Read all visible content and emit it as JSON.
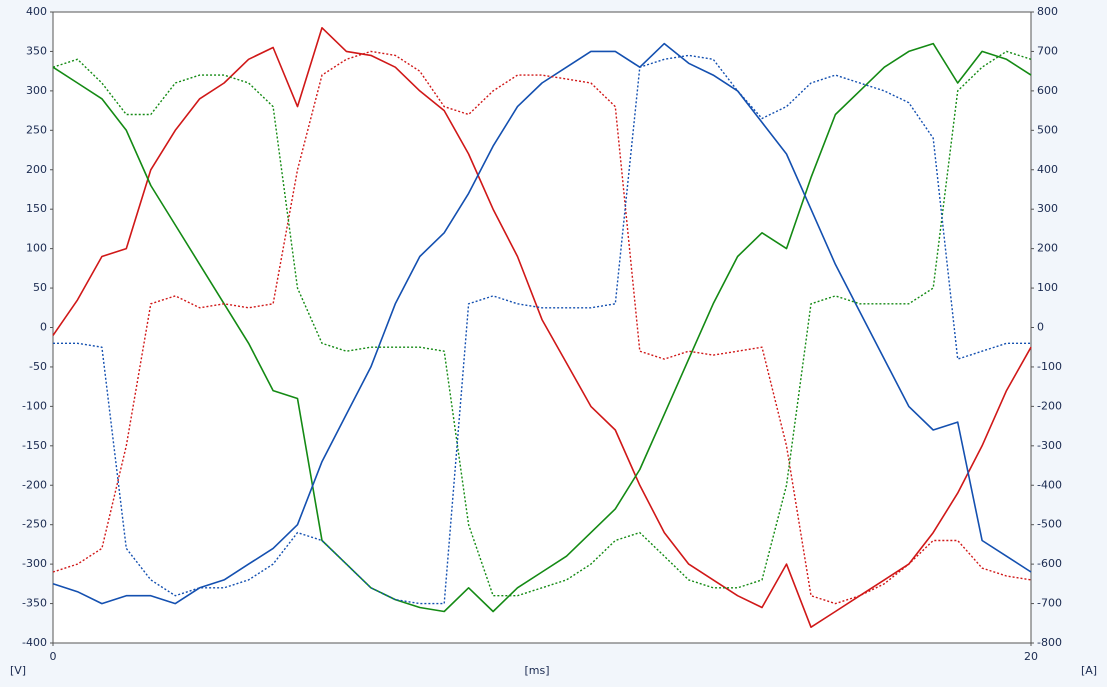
{
  "chart_data": {
    "type": "line",
    "xlabel": "[ms]",
    "ylabel": "[V]",
    "y2label": "[A]",
    "x": [
      0,
      0.5,
      1,
      1.5,
      2,
      2.5,
      3,
      3.5,
      4,
      4.5,
      5,
      5.5,
      6,
      6.5,
      7,
      7.5,
      8,
      8.5,
      9,
      9.5,
      10,
      10.5,
      11,
      11.5,
      12,
      12.5,
      13,
      13.5,
      14,
      14.5,
      15,
      15.5,
      16,
      16.5,
      17,
      17.5,
      18,
      18.5,
      19,
      19.5,
      20
    ],
    "xlim": [
      0,
      20
    ],
    "xticks": [
      0,
      20
    ],
    "ylim": [
      -400,
      400
    ],
    "yticks": [
      -400,
      -350,
      -300,
      -250,
      -200,
      -150,
      -100,
      -50,
      0,
      50,
      100,
      150,
      200,
      250,
      300,
      350,
      400
    ],
    "y2lim": [
      -800,
      800
    ],
    "y2ticks": [
      -800,
      -700,
      -600,
      -500,
      -400,
      -300,
      -200,
      -100,
      0,
      100,
      200,
      300,
      400,
      500,
      600,
      700,
      800
    ],
    "grid": false,
    "series": [
      {
        "color": "#d01818",
        "line_style": "solid",
        "values": [
          -10,
          35,
          90,
          100,
          200,
          250,
          290,
          310,
          340,
          355,
          280,
          380,
          350,
          345,
          330,
          300,
          275,
          220,
          150,
          90,
          10,
          -45,
          -100,
          -130,
          -200,
          -260,
          -300,
          -320,
          -340,
          -355,
          -300,
          -380,
          -360,
          -340,
          -320,
          -300,
          -260,
          -210,
          -150,
          -80,
          -25
        ]
      },
      {
        "color": "#148a14",
        "line_style": "solid",
        "values": [
          330,
          310,
          290,
          250,
          180,
          130,
          80,
          30,
          -20,
          -80,
          -90,
          -270,
          -300,
          -330,
          -345,
          -355,
          -360,
          -330,
          -360,
          -330,
          -310,
          -290,
          -260,
          -230,
          -180,
          -110,
          -40,
          30,
          90,
          120,
          100,
          190,
          270,
          300,
          330,
          350,
          360,
          310,
          350,
          340,
          320
        ]
      },
      {
        "color": "#1450b0",
        "line_style": "solid",
        "values": [
          -325,
          -335,
          -350,
          -340,
          -340,
          -350,
          -330,
          -320,
          -300,
          -280,
          -250,
          -170,
          -110,
          -50,
          30,
          90,
          120,
          170,
          230,
          280,
          310,
          330,
          350,
          350,
          330,
          360,
          335,
          320,
          300,
          260,
          220,
          150,
          80,
          20,
          -40,
          -100,
          -130,
          -120,
          -270,
          -290,
          -310
        ]
      },
      {
        "color": "#d01818",
        "line_style": "dotted",
        "axis": "y2",
        "values": [
          -620,
          -600,
          -560,
          -300,
          60,
          80,
          50,
          60,
          50,
          60,
          400,
          640,
          680,
          700,
          690,
          650,
          560,
          540,
          600,
          640,
          640,
          630,
          620,
          560,
          -60,
          -80,
          -60,
          -70,
          -60,
          -50,
          -300,
          -680,
          -700,
          -680,
          -650,
          -600,
          -540,
          -540,
          -610,
          -630,
          -640
        ]
      },
      {
        "color": "#148a14",
        "line_style": "dotted",
        "axis": "y2",
        "values": [
          660,
          680,
          620,
          540,
          540,
          620,
          640,
          640,
          620,
          560,
          100,
          -40,
          -60,
          -50,
          -50,
          -50,
          -60,
          -500,
          -680,
          -680,
          -660,
          -640,
          -600,
          -540,
          -520,
          -580,
          -640,
          -660,
          -660,
          -640,
          -400,
          60,
          80,
          60,
          60,
          60,
          100,
          600,
          660,
          700,
          680
        ]
      },
      {
        "color": "#1450b0",
        "line_style": "dotted",
        "axis": "y2",
        "values": [
          -40,
          -40,
          -50,
          -560,
          -640,
          -680,
          -660,
          -660,
          -640,
          -600,
          -520,
          -540,
          -600,
          -660,
          -690,
          -700,
          -700,
          60,
          80,
          60,
          50,
          50,
          50,
          60,
          660,
          680,
          690,
          680,
          600,
          530,
          560,
          620,
          640,
          620,
          600,
          570,
          480,
          -80,
          -60,
          -40,
          -40
        ]
      }
    ]
  }
}
